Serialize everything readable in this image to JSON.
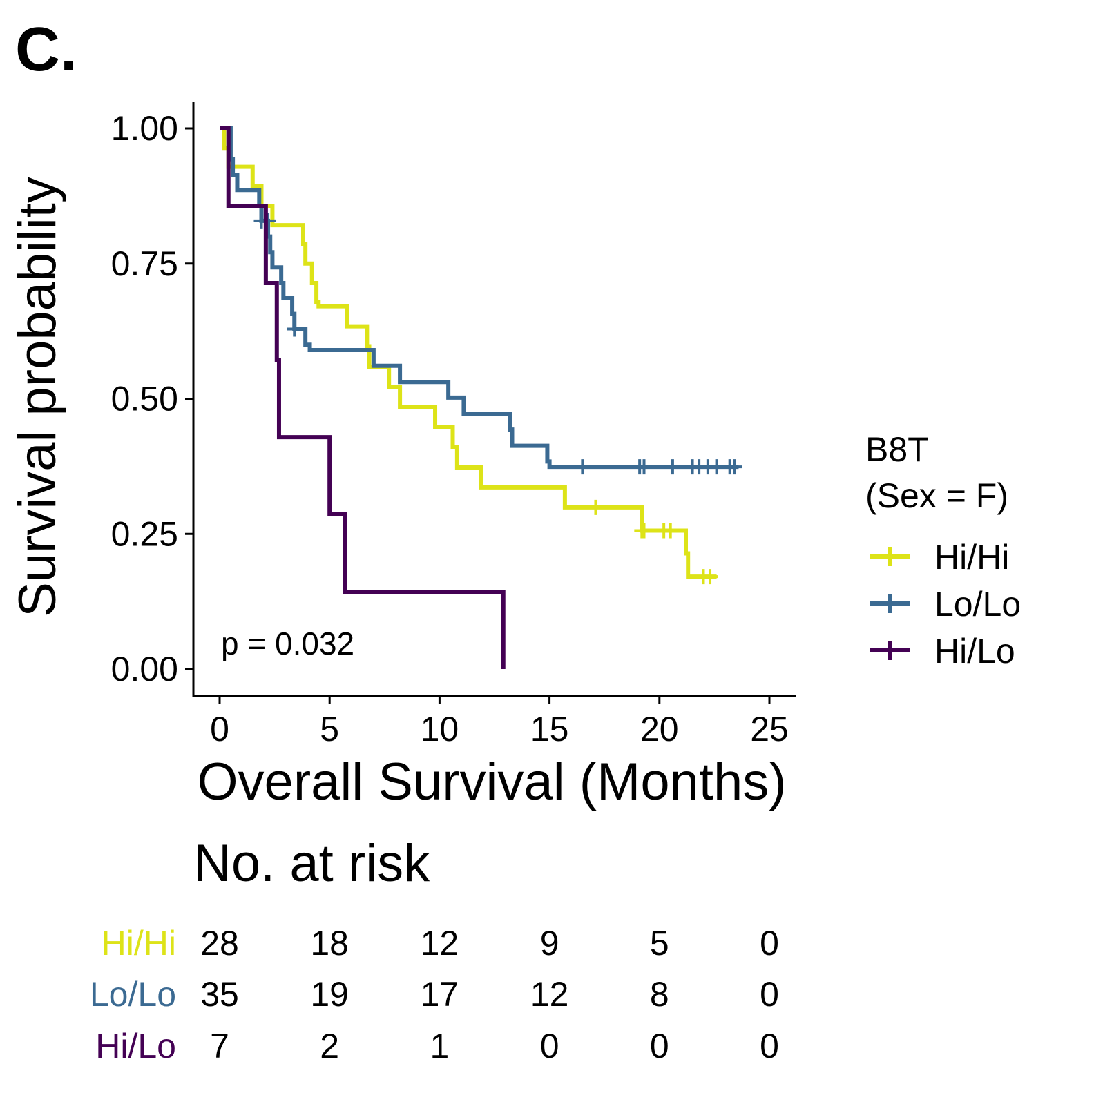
{
  "panel_label": "C.",
  "chart_data": {
    "type": "line",
    "subtype": "kaplan-meier",
    "xlabel": "Overall Survival (Months)",
    "ylabel": "Survival probability",
    "xlim": [
      0,
      25
    ],
    "ylim": [
      0,
      1
    ],
    "xticks": [
      0,
      5,
      10,
      15,
      20,
      25
    ],
    "yticks": [
      0,
      0.25,
      0.5,
      0.75,
      1
    ],
    "ytick_labels": [
      "0.00",
      "0.25",
      "0.50",
      "0.75",
      "1.00"
    ],
    "grid": false,
    "annotation": "p = 0.032",
    "legend": {
      "title_line1": "B8T",
      "title_line2": "(Sex = F)",
      "placement": "right"
    },
    "series": [
      {
        "name": "Hi/Hi",
        "color": "#dde318",
        "steps": [
          [
            0,
            1
          ],
          [
            0.2,
            0.964
          ],
          [
            0.4,
            0.929
          ],
          [
            1.5,
            0.893
          ],
          [
            1.9,
            0.857
          ],
          [
            2.4,
            0.821
          ],
          [
            3.8,
            0.786
          ],
          [
            3.9,
            0.75
          ],
          [
            4.2,
            0.714
          ],
          [
            4.4,
            0.679
          ],
          [
            4.5,
            0.671
          ],
          [
            5.8,
            0.634
          ],
          [
            6.7,
            0.597
          ],
          [
            6.8,
            0.559
          ],
          [
            7.7,
            0.522
          ],
          [
            8.2,
            0.485
          ],
          [
            9.8,
            0.448
          ],
          [
            10.6,
            0.41
          ],
          [
            10.8,
            0.373
          ],
          [
            11.9,
            0.336
          ],
          [
            15.7,
            0.299
          ],
          [
            19.2,
            0.256
          ],
          [
            21.2,
            0.214
          ],
          [
            21.3,
            0.171
          ],
          [
            22.6,
            0.171
          ]
        ],
        "censors": [
          [
            1.9,
            0.857
          ],
          [
            17.1,
            0.299
          ],
          [
            19.2,
            0.256
          ],
          [
            19.3,
            0.256
          ],
          [
            20.2,
            0.256
          ],
          [
            20.5,
            0.256
          ],
          [
            22.0,
            0.171
          ],
          [
            22.3,
            0.171
          ]
        ]
      },
      {
        "name": "Lo/Lo",
        "color": "#3b6a92",
        "steps": [
          [
            0,
            1
          ],
          [
            0.5,
            0.943
          ],
          [
            0.6,
            0.914
          ],
          [
            0.8,
            0.886
          ],
          [
            1.8,
            0.857
          ],
          [
            1.9,
            0.829
          ],
          [
            2.2,
            0.8
          ],
          [
            2.3,
            0.771
          ],
          [
            2.4,
            0.743
          ],
          [
            2.8,
            0.714
          ],
          [
            2.9,
            0.686
          ],
          [
            3.3,
            0.657
          ],
          [
            3.4,
            0.629
          ],
          [
            3.9,
            0.6
          ],
          [
            4.1,
            0.59
          ],
          [
            7.0,
            0.561
          ],
          [
            8.2,
            0.531
          ],
          [
            10.4,
            0.502
          ],
          [
            11.1,
            0.472
          ],
          [
            13.2,
            0.443
          ],
          [
            13.3,
            0.413
          ],
          [
            14.9,
            0.384
          ],
          [
            15.0,
            0.374
          ],
          [
            23.6,
            0.374
          ]
        ],
        "censors": [
          [
            1.9,
            0.829
          ],
          [
            2.2,
            0.829
          ],
          [
            3.4,
            0.629
          ],
          [
            16.5,
            0.374
          ],
          [
            19.1,
            0.374
          ],
          [
            19.3,
            0.374
          ],
          [
            20.6,
            0.374
          ],
          [
            21.5,
            0.374
          ],
          [
            21.8,
            0.374
          ],
          [
            22.2,
            0.374
          ],
          [
            22.6,
            0.374
          ],
          [
            23.2,
            0.374
          ],
          [
            23.4,
            0.374
          ]
        ]
      },
      {
        "name": "Hi/Lo",
        "color": "#440154",
        "steps": [
          [
            0,
            1
          ],
          [
            0.4,
            0.857
          ],
          [
            2.1,
            0.714
          ],
          [
            2.6,
            0.571
          ],
          [
            2.7,
            0.429
          ],
          [
            5.0,
            0.286
          ],
          [
            5.7,
            0.143
          ],
          [
            12.9,
            0
          ]
        ],
        "censors": []
      }
    ],
    "risk_table": {
      "title": "No. at risk",
      "times": [
        0,
        5,
        10,
        15,
        20,
        25
      ],
      "rows": [
        {
          "name": "Hi/Hi",
          "color": "#dde318",
          "values": [
            "28",
            "18",
            "12",
            "9",
            "5",
            "0"
          ]
        },
        {
          "name": "Lo/Lo",
          "color": "#3b6a92",
          "values": [
            "35",
            "19",
            "17",
            "12",
            "8",
            "0"
          ]
        },
        {
          "name": "Hi/Lo",
          "color": "#440154",
          "values": [
            "7",
            "2",
            "1",
            "0",
            "0",
            "0"
          ]
        }
      ]
    }
  }
}
